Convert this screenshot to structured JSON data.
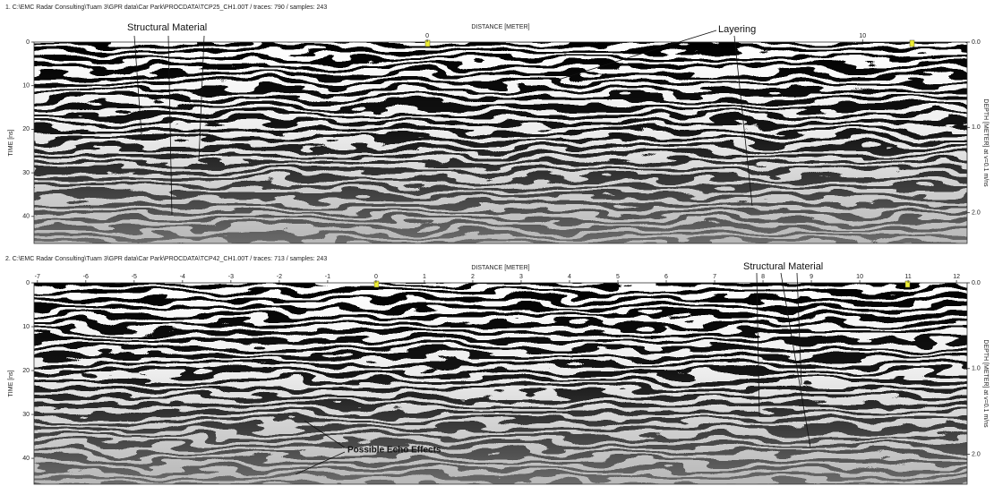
{
  "panels": [
    {
      "header": "1. C:\\EMC Radar Consulting\\Tuam 3\\GPR data\\Car Park\\PROCDATA\\TCP25_CH1.00T / traces: 790 / samples: 243",
      "x_label": "DISTANCE [METER]",
      "y_label": "TIME [ns]",
      "y2_label": "DEPTH [METER] at v=0.1 m/ns",
      "xlim": [
        -9.03,
        12.4
      ],
      "xticks": [
        0,
        10
      ],
      "ylim": [
        0,
        46.2
      ],
      "yticks": [
        0,
        10,
        20,
        30,
        40
      ],
      "y2lim": [
        0,
        2.36
      ],
      "y2ticks": [
        {
          "value": 0,
          "label": "0.0"
        },
        {
          "value": 1,
          "label": "1.0"
        },
        {
          "value": 2,
          "label": "2.0"
        }
      ],
      "annotations": [
        "Structural Material",
        "Layering"
      ]
    },
    {
      "header": "2. C:\\EMC Radar Consulting\\Tuam 3\\GPR data\\Car Park\\PROCDATA\\TCP42_CH1.00T / traces: 713 / samples: 243",
      "x_label": "DISTANCE [METER]",
      "y_label": "TIME [ns]",
      "y2_label": "DEPTH [METER] at v=0.1 m/ns",
      "xlim": [
        -7.07,
        12.22
      ],
      "xticks": [
        -7,
        -6,
        -5,
        -4,
        -3,
        -2,
        -1,
        0,
        1,
        2,
        3,
        4,
        5,
        6,
        7,
        8,
        9,
        10,
        11,
        12
      ],
      "ylim": [
        0,
        45.9
      ],
      "yticks": [
        0,
        10,
        20,
        30,
        40
      ],
      "y2lim": [
        0,
        2.35
      ],
      "y2ticks": [
        {
          "value": 0,
          "label": "0.0"
        },
        {
          "value": 1,
          "label": "1.0"
        },
        {
          "value": 2,
          "label": "2.0"
        }
      ],
      "annotations": [
        "Structural Material",
        "Possible Echo Effects"
      ]
    }
  ]
}
